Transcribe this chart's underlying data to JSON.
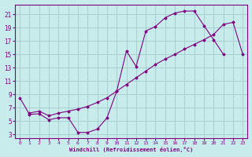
{
  "xlabel": "Windchill (Refroidissement éolien,°C)",
  "ylabel": "",
  "background_color": "#c8ecec",
  "grid_color": "#a8d0d0",
  "line_color": "#800080",
  "marker_color": "#800080",
  "xlim": [
    -0.5,
    23.5
  ],
  "ylim": [
    2.5,
    22.5
  ],
  "xticks": [
    0,
    1,
    2,
    3,
    4,
    5,
    6,
    7,
    8,
    9,
    10,
    11,
    12,
    13,
    14,
    15,
    16,
    17,
    18,
    19,
    20,
    21,
    22,
    23
  ],
  "yticks": [
    3,
    5,
    7,
    9,
    11,
    13,
    15,
    17,
    19,
    21
  ],
  "line1_x": [
    0,
    1,
    2,
    3,
    4,
    5,
    6,
    7,
    8,
    9,
    10,
    11,
    12,
    13,
    14,
    15,
    16,
    17,
    18,
    19,
    20,
    21
  ],
  "line1_y": [
    8.5,
    6.0,
    6.1,
    5.2,
    5.5,
    5.5,
    3.3,
    3.3,
    3.8,
    5.5,
    9.5,
    15.5,
    13.2,
    18.5,
    19.2,
    20.5,
    21.2,
    21.5,
    21.5,
    19.3,
    17.2,
    15.0
  ],
  "line2_x": [
    1,
    2,
    3,
    4,
    5,
    6,
    7,
    8,
    9,
    10,
    11,
    12,
    13,
    14,
    15,
    16,
    17,
    18,
    19,
    20,
    21,
    22,
    23
  ],
  "line2_y": [
    6.2,
    6.5,
    5.8,
    6.2,
    6.5,
    6.8,
    7.2,
    7.8,
    8.5,
    9.5,
    10.5,
    11.5,
    12.5,
    13.5,
    14.3,
    15.0,
    15.8,
    16.5,
    17.2,
    18.0,
    19.5,
    19.8,
    15.0
  ]
}
